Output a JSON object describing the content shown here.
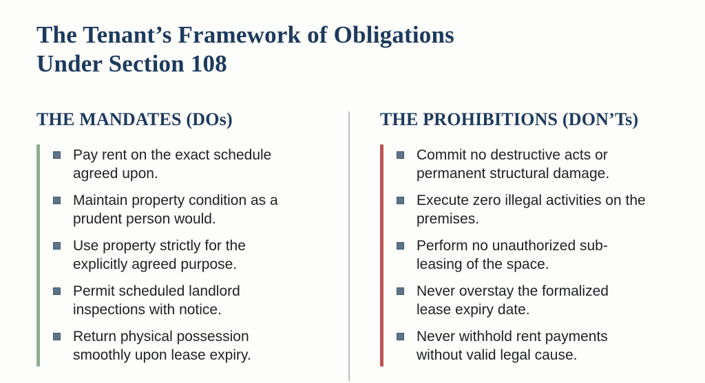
{
  "slide": {
    "title_lines": [
      "The Tenant’s Framework of Obligations",
      "Under Section 108"
    ],
    "colors": {
      "heading_navy": "#1c3a5c",
      "body_text": "#202124",
      "bullet_square": "#5d7488",
      "divider_gray": "#b4bbc1",
      "mandates_accent": "#8fae8d",
      "prohibitions_accent": "#bc5653",
      "background": "#fdfdfc"
    },
    "columns": [
      {
        "heading": "THE MANDATES (DOs)",
        "accent": "#8fae8d",
        "items": [
          "Pay rent on the exact schedule agreed upon.",
          "Maintain property condition as a prudent person would.",
          "Use property strictly for the explicitly agreed purpose.",
          "Permit scheduled landlord inspections with notice.",
          "Return physical possession smoothly upon lease expiry."
        ]
      },
      {
        "heading": "THE PROHIBITIONS (DON’Ts)",
        "accent": "#bc5653",
        "items": [
          "Commit no destructive acts or permanent structural damage.",
          "Execute zero illegal activities on the premises.",
          "Perform no unauthorized sub-leasing of the space.",
          "Never overstay the formalized lease expiry date.",
          "Never withhold rent payments without valid legal cause."
        ]
      }
    ]
  }
}
